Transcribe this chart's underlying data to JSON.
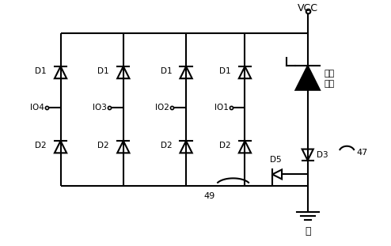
{
  "background_color": "#ffffff",
  "line_color": "#000000",
  "line_width": 1.5,
  "vcc_label": "VCC",
  "gnd_label": "地",
  "clamp_label1": "钓位",
  "clamp_label2": "单元",
  "io_labels": [
    "IO4",
    "IO3",
    "IO2",
    "IO1"
  ],
  "d1_label": "D1",
  "d2_label": "D2",
  "d3_label": "D3",
  "d5_label": "D5",
  "label_49": "49",
  "label_47": "47",
  "figsize": [
    4.94,
    3.11
  ],
  "dpi": 100
}
